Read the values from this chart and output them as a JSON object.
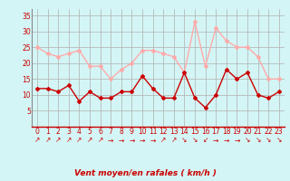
{
  "x": [
    0,
    1,
    2,
    3,
    4,
    5,
    6,
    7,
    8,
    9,
    10,
    11,
    12,
    13,
    14,
    15,
    16,
    17,
    18,
    19,
    20,
    21,
    22,
    23
  ],
  "wind_mean": [
    12,
    12,
    11,
    13,
    8,
    11,
    9,
    9,
    11,
    11,
    16,
    12,
    9,
    9,
    17,
    9,
    6,
    10,
    18,
    15,
    17,
    10,
    9,
    11
  ],
  "wind_gust": [
    25,
    23,
    22,
    23,
    24,
    19,
    19,
    15,
    18,
    20,
    24,
    24,
    23,
    22,
    17,
    33,
    19,
    31,
    27,
    25,
    25,
    22,
    15,
    15
  ],
  "arrow_chars": [
    "↗",
    "↗",
    "↗",
    "↗",
    "↗",
    "↗",
    "↗",
    "→",
    "→",
    "→",
    "→",
    "→",
    "↗",
    "↗",
    "↘",
    "↘",
    "↙",
    "→",
    "→",
    "→",
    "↘",
    "↘",
    "↘",
    "↘"
  ],
  "mean_color": "#cc0000",
  "gust_color": "#ffaaaa",
  "bg_color": "#d4f5f5",
  "grid_color": "#b0b0b0",
  "xlabel": "Vent moyen/en rafales ( km/h )",
  "ylim": [
    0,
    37
  ],
  "yticks": [
    5,
    10,
    15,
    20,
    25,
    30,
    35
  ],
  "marker": "D",
  "marker_size": 2,
  "line_width": 1.0,
  "tick_fontsize": 5.5,
  "xlabel_fontsize": 6.5,
  "arrow_fontsize": 5.5
}
